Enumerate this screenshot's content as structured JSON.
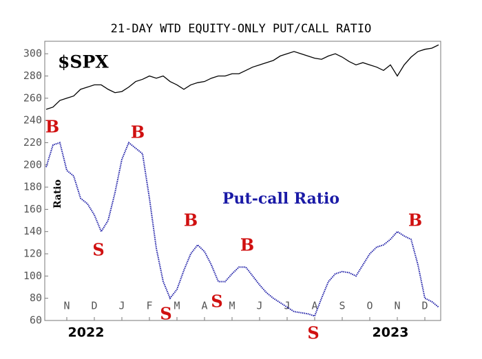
{
  "chart_data": {
    "type": "line",
    "title": "21-DAY WTD EQUITY-ONLY PUT/CALL RATIO",
    "y_label": "Ratio",
    "categories": [
      null,
      null,
      null,
      "N",
      null,
      null,
      null,
      "D",
      null,
      null,
      null,
      "J",
      null,
      null,
      null,
      "F",
      null,
      null,
      null,
      "M",
      null,
      null,
      null,
      "A",
      null,
      null,
      null,
      "M",
      null,
      null,
      null,
      "J",
      null,
      null,
      null,
      "J",
      null,
      null,
      null,
      "A",
      null,
      null,
      null,
      "S",
      null,
      null,
      null,
      "O",
      null,
      null,
      null,
      "N",
      null,
      null,
      null,
      "D",
      null,
      null
    ],
    "year_labels": [
      "2022",
      "2023"
    ],
    "series": [
      {
        "name": "$SPX",
        "color": "#000000",
        "values": [
          250,
          252,
          258,
          260,
          262,
          268,
          270,
          272,
          272,
          268,
          265,
          266,
          270,
          275,
          277,
          280,
          278,
          280,
          275,
          272,
          268,
          272,
          274,
          275,
          278,
          280,
          280,
          282,
          282,
          285,
          288,
          290,
          292,
          294,
          298,
          300,
          302,
          300,
          298,
          296,
          295,
          298,
          300,
          297,
          293,
          290,
          292,
          290,
          288,
          285,
          290,
          280,
          290,
          297,
          302,
          304,
          305,
          308
        ]
      },
      {
        "name": "Put-call Ratio",
        "color": "#1a1aa6",
        "values": [
          198,
          218,
          220,
          195,
          190,
          170,
          165,
          155,
          140,
          150,
          175,
          205,
          220,
          215,
          210,
          170,
          125,
          95,
          80,
          88,
          105,
          120,
          128,
          122,
          110,
          95,
          95,
          102,
          108,
          108,
          100,
          92,
          85,
          80,
          76,
          72,
          68,
          67,
          66,
          64,
          80,
          95,
          102,
          104,
          103,
          100,
          110,
          120,
          126,
          128,
          133,
          140,
          136,
          133,
          110,
          80,
          77,
          72
        ]
      }
    ],
    "annotations": [
      "B",
      "S",
      "B",
      "S",
      "B",
      "S",
      "B",
      "S",
      "B"
    ],
    "annotation_color": "#d01010",
    "ylim": [
      60,
      310
    ],
    "yticks": [
      60,
      80,
      100,
      120,
      140,
      160,
      180,
      200,
      220,
      240,
      260,
      280,
      300
    ]
  }
}
